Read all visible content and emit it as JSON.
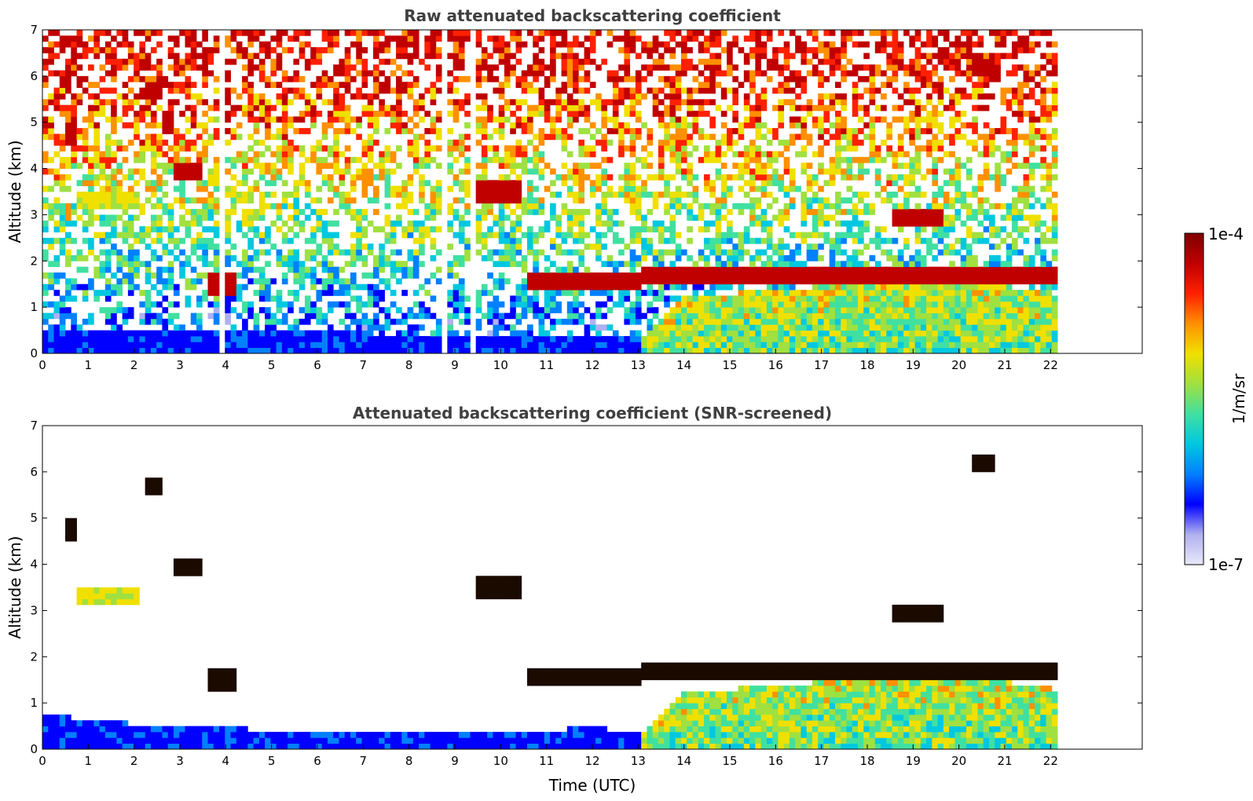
{
  "chart_data": [
    {
      "type": "heatmap",
      "title": "Raw attenuated backscattering coefficient",
      "xlabel": "",
      "ylabel": "Altitude (km)",
      "xlim": [
        0,
        24
      ],
      "ylim": [
        0,
        7
      ],
      "x_ticks": [
        "0",
        "1",
        "2",
        "3",
        "4",
        "5",
        "6",
        "7",
        "8",
        "9",
        "10",
        "11",
        "12",
        "13",
        "14",
        "15",
        "16",
        "17",
        "18",
        "19",
        "20",
        "21",
        "22"
      ],
      "y_ticks": [
        "0",
        "1",
        "2",
        "3",
        "4",
        "5",
        "6",
        "7"
      ],
      "data_end_time": 22.15,
      "gaps": [
        [
          2.8,
          2.9
        ],
        [
          3.05,
          3.15
        ],
        [
          3.85,
          3.95
        ],
        [
          8.75,
          8.85
        ],
        [
          9.3,
          9.4
        ]
      ],
      "surface_layer": [
        [
          0,
          0.5
        ],
        [
          6,
          0.45
        ],
        [
          10,
          0.4
        ],
        [
          13.1,
          0.35
        ],
        [
          14,
          1.2
        ],
        [
          16,
          1.4
        ],
        [
          20,
          1.6
        ],
        [
          22.15,
          1.3
        ]
      ],
      "layers": [
        {
          "t0": 0.5,
          "t1": 0.7,
          "z": 4.75,
          "level": "high"
        },
        {
          "t0": 2.2,
          "t1": 2.6,
          "z": 5.65,
          "level": "high"
        },
        {
          "t0": 2.6,
          "t1": 2.85,
          "z": 5.0,
          "level": "high"
        },
        {
          "t0": 2.85,
          "t1": 3.5,
          "z": 3.95,
          "level": "high"
        },
        {
          "t0": 0.8,
          "t1": 2.1,
          "z": 3.3,
          "level": "mid"
        },
        {
          "t0": 3.6,
          "t1": 4.2,
          "z": 1.5,
          "level": "high"
        },
        {
          "t0": 9.5,
          "t1": 10.5,
          "z": 3.5,
          "level": "high"
        },
        {
          "t0": 10.6,
          "t1": 13.1,
          "z": 1.55,
          "level": "high"
        },
        {
          "t0": 13.1,
          "t1": 22.15,
          "z": 1.7,
          "level": "high"
        },
        {
          "t0": 18.5,
          "t1": 19.7,
          "z": 2.95,
          "level": "high"
        },
        {
          "t0": 20.3,
          "t1": 20.8,
          "z": 6.15,
          "level": "high"
        }
      ]
    },
    {
      "type": "heatmap",
      "title": "Attenuated backscattering coefficient (SNR-screened)",
      "xlabel": "Time (UTC)",
      "ylabel": "Altitude (km)",
      "xlim": [
        0,
        24
      ],
      "ylim": [
        0,
        7
      ],
      "x_ticks": [
        "0",
        "1",
        "2",
        "3",
        "4",
        "5",
        "6",
        "7",
        "8",
        "9",
        "10",
        "11",
        "12",
        "13",
        "14",
        "15",
        "16",
        "17",
        "18",
        "19",
        "20",
        "21",
        "22"
      ],
      "y_ticks": [
        "0",
        "1",
        "2",
        "3",
        "4",
        "5",
        "6",
        "7"
      ],
      "data_end_time": 22.15,
      "surface_layer": [
        [
          0,
          0.75
        ],
        [
          2,
          0.55
        ],
        [
          4,
          0.45
        ],
        [
          8,
          0.35
        ],
        [
          12,
          0.45
        ],
        [
          13.1,
          0.4
        ],
        [
          14,
          1.2
        ],
        [
          16,
          1.4
        ],
        [
          20,
          1.6
        ],
        [
          22.15,
          1.3
        ]
      ],
      "layers": [
        {
          "t0": 0.5,
          "t1": 0.7,
          "z": 4.75,
          "level": "high"
        },
        {
          "t0": 2.2,
          "t1": 2.6,
          "z": 5.65,
          "level": "high"
        },
        {
          "t0": 2.85,
          "t1": 3.5,
          "z": 3.95,
          "level": "high"
        },
        {
          "t0": 0.8,
          "t1": 2.1,
          "z": 3.3,
          "level": "mid"
        },
        {
          "t0": 3.6,
          "t1": 4.2,
          "z": 1.5,
          "level": "high"
        },
        {
          "t0": 9.5,
          "t1": 10.5,
          "z": 3.5,
          "level": "high"
        },
        {
          "t0": 10.6,
          "t1": 13.1,
          "z": 1.55,
          "level": "high"
        },
        {
          "t0": 13.1,
          "t1": 22.15,
          "z": 1.7,
          "level": "high"
        },
        {
          "t0": 18.5,
          "t1": 19.7,
          "z": 2.95,
          "level": "high"
        },
        {
          "t0": 20.3,
          "t1": 20.8,
          "z": 6.15,
          "level": "high"
        }
      ]
    }
  ],
  "colorbar": {
    "max_label": "1e-4",
    "min_label": "1e-7",
    "unit_label": "1/m/sr",
    "colormap": [
      "#e8e8f8",
      "#b0b0f0",
      "#0000ff",
      "#0080ff",
      "#00c8e0",
      "#40e0a0",
      "#a0e040",
      "#f0e000",
      "#ff9000",
      "#ff2000",
      "#c00000",
      "#800000"
    ]
  }
}
